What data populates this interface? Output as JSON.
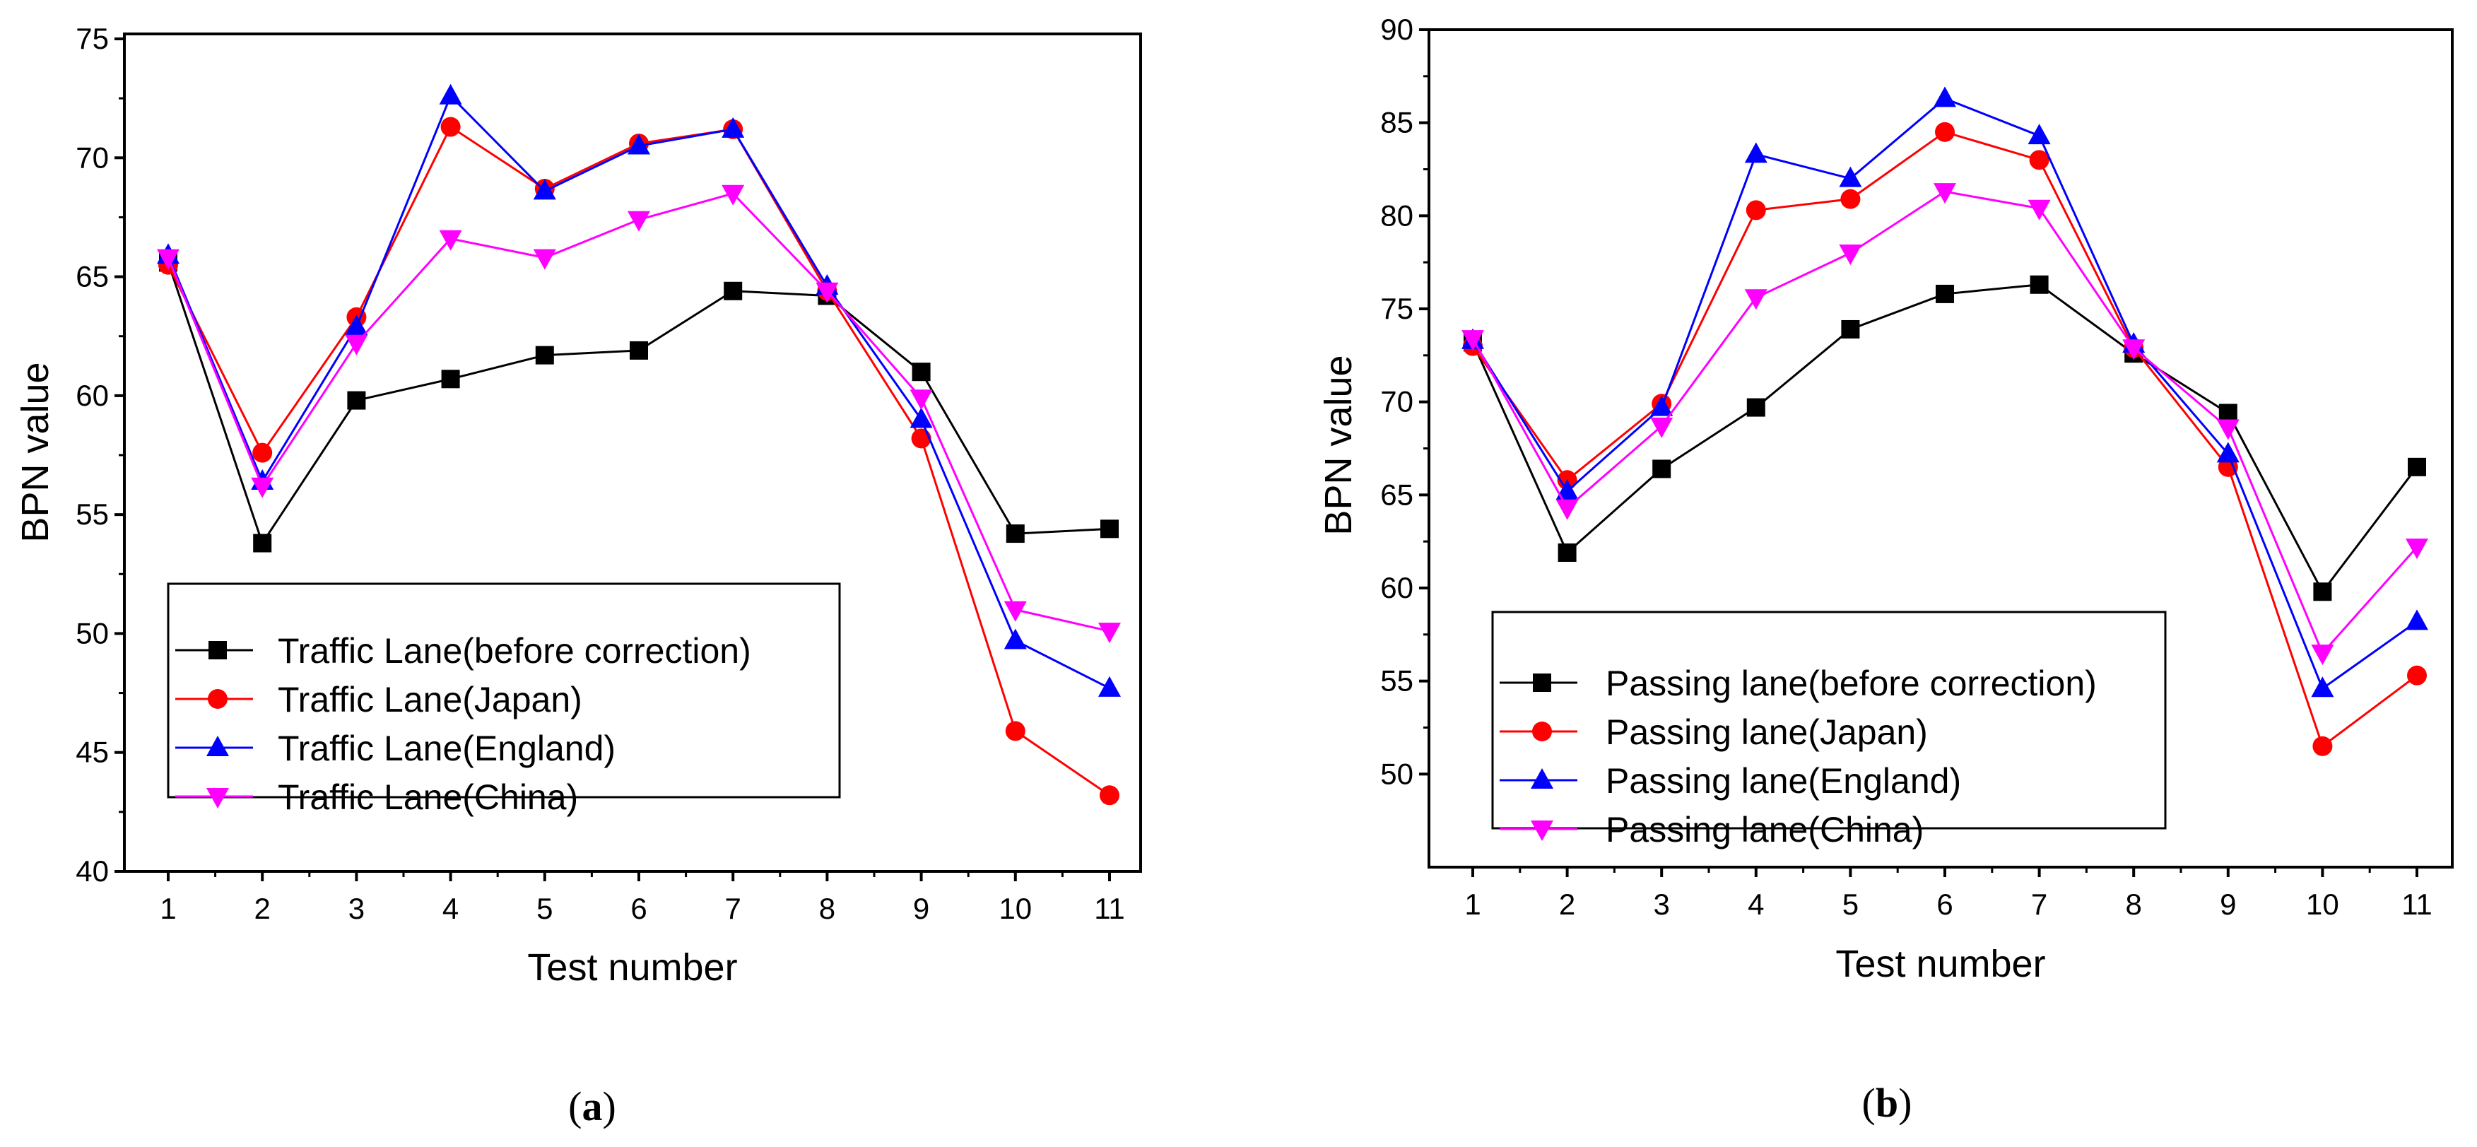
{
  "colors": {
    "before": "#000000",
    "japan": "#ff0000",
    "england": "#0000ff",
    "china": "#ff00ff"
  },
  "captions": {
    "a": {
      "open": "(",
      "letter": "a",
      "close": ")"
    },
    "b": {
      "open": "(",
      "letter": "b",
      "close": ")"
    }
  },
  "chart_data": [
    {
      "type": "line",
      "panel": "a",
      "xlabel": "Test number",
      "ylabel": "BPN value",
      "ylim": [
        40,
        75
      ],
      "yticks": [
        40,
        45,
        50,
        55,
        60,
        65,
        70,
        75
      ],
      "x": [
        1,
        2,
        3,
        4,
        5,
        6,
        7,
        8,
        9,
        10,
        11
      ],
      "legend_position": "lower-left",
      "series": [
        {
          "name": "Traffic Lane(before correction)",
          "key": "before",
          "marker": "square",
          "values": [
            65.6,
            53.8,
            59.8,
            60.7,
            61.7,
            61.9,
            64.4,
            64.2,
            61.0,
            54.2,
            54.4
          ]
        },
        {
          "name": "Traffic Lane(Japan)",
          "key": "japan",
          "marker": "circle",
          "values": [
            65.5,
            57.6,
            63.3,
            71.3,
            68.7,
            70.6,
            71.2,
            64.4,
            58.2,
            45.9,
            43.2
          ]
        },
        {
          "name": "Traffic Lane(England)",
          "key": "england",
          "marker": "triangle-up",
          "values": [
            65.9,
            56.4,
            62.9,
            72.6,
            68.6,
            70.5,
            71.2,
            64.6,
            59.0,
            49.7,
            47.7
          ]
        },
        {
          "name": "Traffic Lane(China)",
          "key": "china",
          "marker": "triangle-down",
          "values": [
            65.8,
            56.2,
            62.2,
            66.6,
            65.8,
            67.4,
            68.5,
            64.4,
            59.9,
            51.0,
            50.1
          ]
        }
      ]
    },
    {
      "type": "line",
      "panel": "b",
      "xlabel": "Test number",
      "ylabel": "BPN value",
      "ylim": [
        45,
        90
      ],
      "yticks": [
        50,
        55,
        60,
        65,
        70,
        75,
        80,
        85,
        90
      ],
      "x": [
        1,
        2,
        3,
        4,
        5,
        6,
        7,
        8,
        9,
        10,
        11
      ],
      "legend_position": "lower-left",
      "series": [
        {
          "name": "Passing lane(before correction)",
          "key": "before",
          "marker": "square",
          "values": [
            73.2,
            61.9,
            66.4,
            69.7,
            73.9,
            75.8,
            76.3,
            72.6,
            69.4,
            59.8,
            66.5
          ]
        },
        {
          "name": "Passing lane(Japan)",
          "key": "japan",
          "marker": "circle",
          "values": [
            73.0,
            65.8,
            69.9,
            80.3,
            80.9,
            84.5,
            83.0,
            72.9,
            66.5,
            51.5,
            55.3
          ]
        },
        {
          "name": "Passing lane(England)",
          "key": "england",
          "marker": "triangle-up",
          "values": [
            73.3,
            65.2,
            69.7,
            83.3,
            82.0,
            86.3,
            84.3,
            73.1,
            67.2,
            54.6,
            58.2
          ]
        },
        {
          "name": "Passing lane(China)",
          "key": "china",
          "marker": "triangle-down",
          "values": [
            73.4,
            64.3,
            68.7,
            75.6,
            78.0,
            81.3,
            80.4,
            72.9,
            68.6,
            56.5,
            62.2
          ]
        }
      ]
    }
  ]
}
